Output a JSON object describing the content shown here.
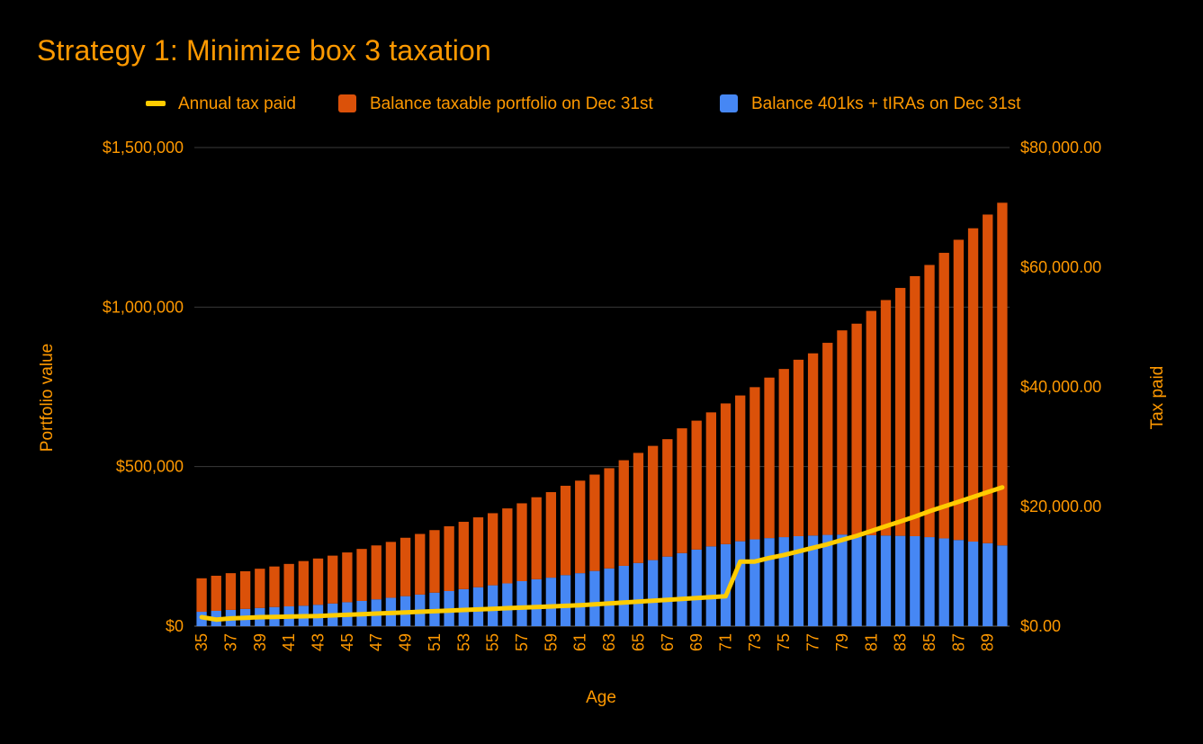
{
  "colors": {
    "background": "#000000",
    "text": "#ff9900",
    "taxable": "#db5109",
    "retirement": "#4687f4",
    "tax_line": "#ffcc00",
    "grid": "#3a3a3a"
  },
  "chart_data": {
    "type": "bar",
    "stacked": true,
    "title": "Strategy 1: Minimize box 3 taxation",
    "xlabel": "Age",
    "ylabel": "Portfolio value",
    "y2label": "Tax paid",
    "ylim": [
      0,
      1500000
    ],
    "y2lim": [
      0,
      80000
    ],
    "yticks": [
      "$0",
      "$500,000",
      "$1,000,000",
      "$1,500,000"
    ],
    "y2ticks": [
      "$0.00",
      "$20,000.00",
      "$40,000.00",
      "$60,000.00",
      "$80,000.00"
    ],
    "xtick_labels": [
      "35",
      "37",
      "39",
      "41",
      "43",
      "45",
      "47",
      "49",
      "51",
      "53",
      "55",
      "57",
      "59",
      "61",
      "63",
      "65",
      "67",
      "69",
      "71",
      "73",
      "75",
      "77",
      "79",
      "81",
      "83",
      "85",
      "87",
      "89"
    ],
    "grid": true,
    "legend_position": "top",
    "x": [
      35,
      36,
      37,
      38,
      39,
      40,
      41,
      42,
      43,
      44,
      45,
      46,
      47,
      48,
      49,
      50,
      51,
      52,
      53,
      54,
      55,
      56,
      57,
      58,
      59,
      60,
      61,
      62,
      63,
      64,
      65,
      66,
      67,
      68,
      69,
      70,
      71,
      72,
      73,
      74,
      75,
      76,
      77,
      78,
      79,
      80,
      81,
      82,
      83,
      84,
      85,
      86,
      87,
      88,
      89,
      90
    ],
    "series": [
      {
        "name": "Balance 401ks + tIRAs on Dec 31st",
        "type": "bar",
        "axis": "left",
        "values": [
          45000,
          48000,
          51000,
          54000,
          57000,
          60000,
          62000,
          64000,
          67000,
          71000,
          75000,
          79000,
          84000,
          89000,
          94000,
          99000,
          105000,
          110000,
          116000,
          122000,
          128000,
          134000,
          141000,
          147000,
          152000,
          160000,
          166000,
          173000,
          181000,
          189000,
          198000,
          207000,
          218000,
          229000,
          240000,
          250000,
          257000,
          266000,
          272000,
          276000,
          279000,
          282000,
          284000,
          286000,
          287000,
          286000,
          285000,
          284000,
          283000,
          282000,
          279000,
          275000,
          270000,
          265000,
          260000,
          253000
        ]
      },
      {
        "name": "Balance taxable portfolio on Dec 31st",
        "type": "bar",
        "axis": "left",
        "values": [
          105000,
          110000,
          115000,
          118000,
          123000,
          127000,
          133000,
          140000,
          145000,
          150000,
          156000,
          163000,
          169000,
          175000,
          183000,
          190000,
          196000,
          203000,
          211000,
          219000,
          226000,
          235000,
          244000,
          257000,
          268000,
          280000,
          290000,
          302000,
          314000,
          331000,
          345000,
          358000,
          368000,
          391000,
          404000,
          420000,
          441000,
          457000,
          477000,
          503000,
          527000,
          553000,
          571000,
          602000,
          640000,
          662000,
          703000,
          738000,
          777000,
          815000,
          853000,
          895000,
          941000,
          982000,
          1030000,
          1074000
        ]
      },
      {
        "name": "Annual tax paid",
        "type": "line",
        "axis": "right",
        "values": [
          1500,
          1100,
          1300,
          1400,
          1500,
          1550,
          1600,
          1650,
          1700,
          1800,
          1900,
          2000,
          2100,
          2200,
          2300,
          2400,
          2500,
          2600,
          2700,
          2800,
          2900,
          3000,
          3100,
          3200,
          3300,
          3400,
          3500,
          3650,
          3800,
          3950,
          4100,
          4250,
          4400,
          4550,
          4700,
          4850,
          5000,
          10800,
          10800,
          11400,
          11900,
          12500,
          13100,
          13700,
          14400,
          15100,
          15900,
          16700,
          17500,
          18300,
          19200,
          20000,
          20800,
          21600,
          22400,
          23200
        ]
      }
    ]
  }
}
